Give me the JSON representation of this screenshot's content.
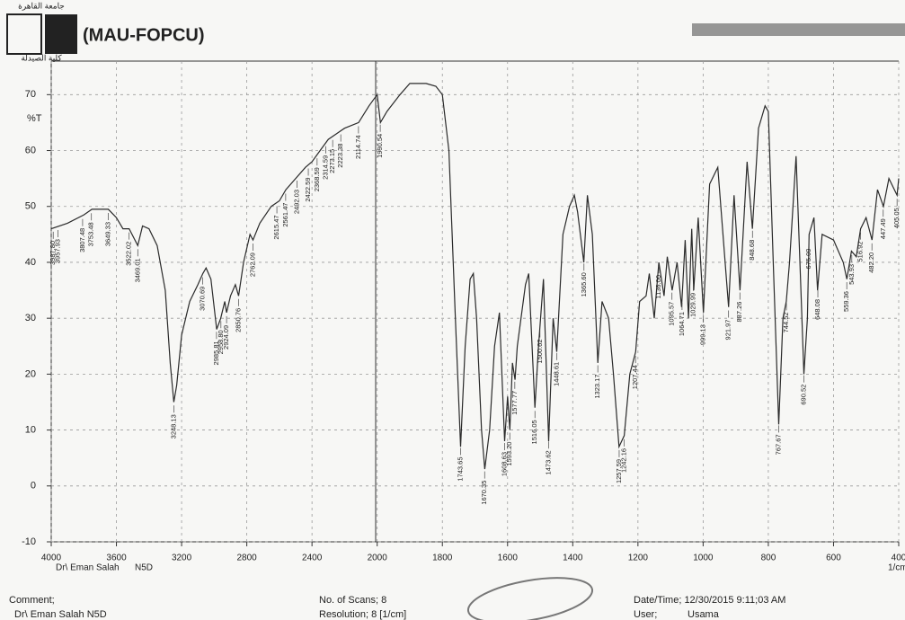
{
  "header": {
    "university": "جامعة القاهرة",
    "faculty": "كلية الصيدلة",
    "code": "(MAU-FOPCU)"
  },
  "chart_data": {
    "type": "line",
    "y_label": "%T",
    "x_label": "1/cm",
    "operator": "Dr\\ Eman Salah",
    "sample": "N5D",
    "color": "#2a2a2a",
    "grid": true,
    "xlim": [
      4000,
      400
    ],
    "xticks": [
      4000,
      3600,
      3200,
      2800,
      2400,
      2000,
      1800,
      1600,
      1400,
      1200,
      1000,
      800,
      600,
      400
    ],
    "ylim": [
      -10,
      76
    ],
    "yticks": [
      -10,
      0,
      10,
      20,
      30,
      40,
      50,
      60,
      70
    ],
    "x": [
      4000,
      3900,
      3800,
      3750,
      3650,
      3600,
      3560,
      3522,
      3469,
      3440,
      3400,
      3350,
      3300,
      3270,
      3248,
      3230,
      3200,
      3150,
      3100,
      3070,
      3050,
      3020,
      2985,
      2960,
      2935,
      2924,
      2900,
      2870,
      2850,
      2820,
      2780,
      2762,
      2720,
      2650,
      2600,
      2560,
      2500,
      2440,
      2400,
      2350,
      2300,
      2250,
      2200,
      2114,
      2050,
      2000,
      1990,
      1970,
      1930,
      1900,
      1850,
      1820,
      1800,
      1780,
      1760,
      1744,
      1730,
      1715,
      1705,
      1695,
      1680,
      1670,
      1655,
      1640,
      1625,
      1609,
      1600,
      1593,
      1585,
      1577,
      1570,
      1545,
      1535,
      1516,
      1505,
      1490,
      1474,
      1460,
      1449,
      1430,
      1410,
      1395,
      1385,
      1366,
      1355,
      1340,
      1323,
      1310,
      1290,
      1275,
      1258,
      1242,
      1225,
      1207,
      1195,
      1175,
      1165,
      1150,
      1136,
      1120,
      1110,
      1095,
      1080,
      1066,
      1055,
      1045,
      1035,
      1029,
      1015,
      999,
      980,
      955,
      922,
      905,
      887,
      865,
      849,
      830,
      810,
      800,
      785,
      768,
      755,
      745,
      735,
      715,
      700,
      691,
      680,
      675,
      660,
      649,
      635,
      600,
      570,
      559,
      545,
      530,
      517,
      500,
      482,
      465,
      447,
      430,
      405,
      400
    ],
    "values": [
      46,
      47,
      48.5,
      49.5,
      49.5,
      48,
      46,
      46,
      43,
      46.5,
      46,
      43,
      35,
      22,
      15,
      18,
      27,
      33,
      36,
      38,
      39,
      37,
      28,
      30,
      33,
      31,
      34,
      36,
      34,
      40,
      45,
      44,
      47,
      50,
      51,
      53,
      55,
      57,
      58,
      60,
      62,
      63,
      64,
      65,
      68,
      70,
      65,
      67,
      70,
      72,
      72,
      71.5,
      70,
      60,
      30,
      7,
      25,
      37,
      38,
      30,
      10,
      3,
      10,
      25,
      31,
      8,
      16,
      10,
      22,
      19,
      25,
      36,
      38,
      14,
      25,
      37,
      8,
      30,
      24,
      45,
      50,
      52,
      49,
      40,
      52,
      45,
      22,
      33,
      30,
      20,
      7,
      9,
      20,
      24,
      33,
      34,
      38,
      30,
      40,
      34,
      41,
      35,
      40,
      32,
      44,
      30,
      46,
      35,
      48,
      31,
      54,
      57,
      32,
      52,
      35,
      58,
      46,
      64,
      68,
      67,
      40,
      11,
      30,
      33,
      40,
      59,
      35,
      20,
      30,
      45,
      48,
      35,
      45,
      44,
      40,
      37,
      42,
      41,
      46,
      48,
      44,
      53,
      50,
      55,
      52,
      55
    ],
    "peak_labels": [
      {
        "value": 3987.8,
        "label": "3987.80"
      },
      {
        "value": 3957.93,
        "label": "3957.93"
      },
      {
        "value": 3807.48,
        "label": "3807.48"
      },
      {
        "value": 3753.48,
        "label": "3753.48"
      },
      {
        "value": 3649.33,
        "label": "3649.33"
      },
      {
        "value": 3522.02,
        "label": "3522.02"
      },
      {
        "value": 3469.01,
        "label": "3469.01"
      },
      {
        "value": 3248.13,
        "label": "3248.13"
      },
      {
        "value": 3070.69,
        "label": "3070.69"
      },
      {
        "value": 2985.81,
        "label": "2985.81"
      },
      {
        "value": 2958.8,
        "label": "2958.80"
      },
      {
        "value": 2924.09,
        "label": "2924.09"
      },
      {
        "value": 2850.76,
        "label": "2850.76"
      },
      {
        "value": 2762.09,
        "label": "2762.09"
      },
      {
        "value": 2615.47,
        "label": "2615.47"
      },
      {
        "value": 2561.47,
        "label": "2561.47"
      },
      {
        "value": 2492.03,
        "label": "2492.03"
      },
      {
        "value": 2422.59,
        "label": "2422.59"
      },
      {
        "value": 2368.59,
        "label": "2368.59"
      },
      {
        "value": 2314.59,
        "label": "2314.59"
      },
      {
        "value": 2273.15,
        "label": "2273.15"
      },
      {
        "value": 2223.38,
        "label": "2223.38"
      },
      {
        "value": 2114.74,
        "label": "2114.74"
      },
      {
        "value": 1990.54,
        "label": "1990.54"
      },
      {
        "value": 1743.65,
        "label": "1743.65"
      },
      {
        "value": 1670.35,
        "label": "1670.35"
      },
      {
        "value": 1608.63,
        "label": "1608.63"
      },
      {
        "value": 1593.2,
        "label": "1593.20"
      },
      {
        "value": 1577.77,
        "label": "1577.77"
      },
      {
        "value": 1516.05,
        "label": "1516.05"
      },
      {
        "value": 1500.62,
        "label": "1500.62"
      },
      {
        "value": 1473.62,
        "label": "1473.62"
      },
      {
        "value": 1448.61,
        "label": "1448.61"
      },
      {
        "value": 1365.6,
        "label": "1365.60"
      },
      {
        "value": 1323.17,
        "label": "1323.17"
      },
      {
        "value": 1257.59,
        "label": "1257.59"
      },
      {
        "value": 1242.16,
        "label": "1242.16"
      },
      {
        "value": 1207.44,
        "label": "1207.44"
      },
      {
        "value": 1136,
        "label": "1136.00"
      },
      {
        "value": 1095.57,
        "label": "1095.57"
      },
      {
        "value": 1064.71,
        "label": "1064.71"
      },
      {
        "value": 1029.99,
        "label": "1029.99"
      },
      {
        "value": 999.13,
        "label": "999.13"
      },
      {
        "value": 921.97,
        "label": "921.97"
      },
      {
        "value": 887.26,
        "label": "887.26"
      },
      {
        "value": 848.68,
        "label": "848.68"
      },
      {
        "value": 767.67,
        "label": "767.67"
      },
      {
        "value": 744.52,
        "label": "744.52"
      },
      {
        "value": 690.52,
        "label": "690.52"
      },
      {
        "value": 675.09,
        "label": "675.09"
      },
      {
        "value": 648.08,
        "label": "648.08"
      },
      {
        "value": 559.36,
        "label": "559.36"
      },
      {
        "value": 543.93,
        "label": "543.93"
      },
      {
        "value": 516.92,
        "label": "516.92"
      },
      {
        "value": 482.2,
        "label": "482.20"
      },
      {
        "value": 447.49,
        "label": "447.49"
      },
      {
        "value": 405.05,
        "label": "405.05"
      }
    ]
  },
  "footer": {
    "comment": "Comment;",
    "comment_text": "Dr\\ Eman Salah   N5D",
    "scans": "No. of Scans; 8",
    "resolution": "Resolution;   8 [1/cm]",
    "datetime": "Date/Time; 12/30/2015 9:11;03 AM",
    "user_label": "User;",
    "user": "Usama"
  }
}
